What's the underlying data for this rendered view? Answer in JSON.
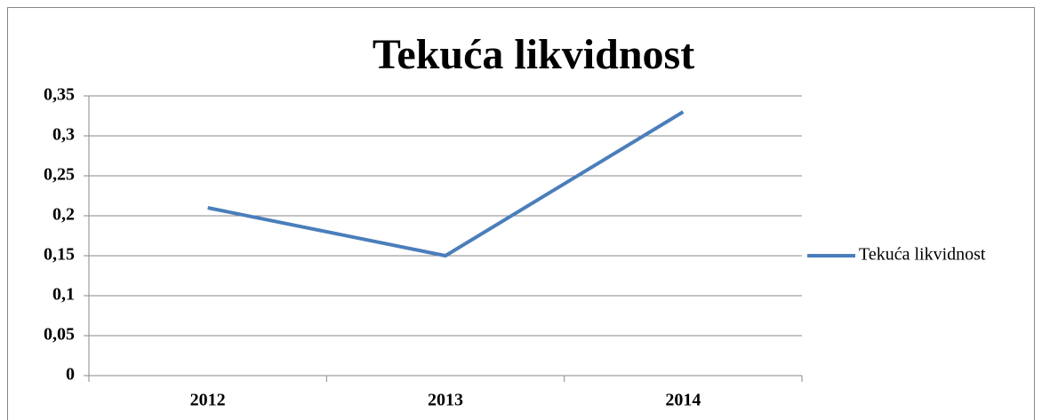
{
  "chart_data": {
    "type": "line",
    "title": "Tekuća likvidnost",
    "categories": [
      "2012",
      "2013",
      "2014"
    ],
    "series": [
      {
        "name": "Tekuća likvidnost",
        "color": "#4a7ebb",
        "values": [
          0.21,
          0.15,
          0.33
        ]
      }
    ],
    "ylim": [
      0,
      0.35
    ],
    "yticks": [
      0,
      {
        "value": 0.05,
        "label": "0,05"
      },
      {
        "value": 0.1,
        "label": "0,1"
      },
      {
        "value": 0.15,
        "label": "0,15"
      },
      {
        "value": 0.2,
        "label": "0,2"
      },
      {
        "value": 0.25,
        "label": "0,25"
      },
      {
        "value": 0.3,
        "label": "0,3"
      },
      {
        "value": 0.35,
        "label": "0,35"
      }
    ],
    "grid": true,
    "legend": "right"
  }
}
